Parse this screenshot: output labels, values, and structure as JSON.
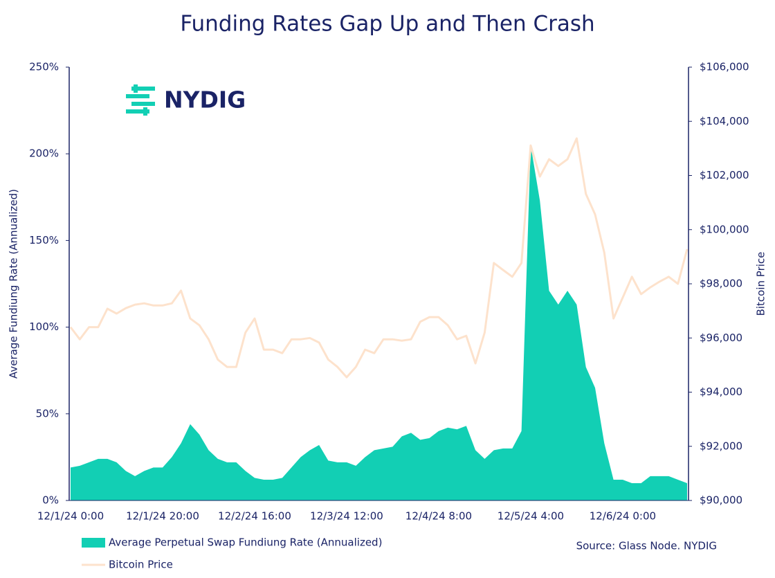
{
  "chart_data": {
    "type": "line",
    "title": "Funding Rates Gap Up and Then Crash",
    "y_label": "Average Fundiung Rate (Annualized)",
    "y2_label": "Bitcoin Price",
    "logo": "NYDIG",
    "source": "Source: Glass Node. NYDIG",
    "categories": [
      "12/1/24 0:00",
      null,
      null,
      null,
      null,
      null,
      null,
      null,
      null,
      null,
      "12/1/24 20:00",
      null,
      null,
      null,
      null,
      null,
      null,
      null,
      null,
      null,
      "12/2/24 16:00",
      null,
      null,
      null,
      null,
      null,
      null,
      null,
      null,
      null,
      "12/3/24 12:00",
      null,
      null,
      null,
      null,
      null,
      null,
      null,
      null,
      null,
      "12/4/24 8:00",
      null,
      null,
      null,
      null,
      null,
      null,
      null,
      null,
      null,
      "12/5/24 4:00",
      null,
      null,
      null,
      null,
      null,
      null,
      null,
      null,
      null,
      "12/6/24 0:00",
      null,
      null,
      null,
      null,
      null,
      null,
      null
    ],
    "series": [
      {
        "name": "Average Perpetual Swap Fundiung Rate (Annualized)",
        "type": "area",
        "color": "#12cfb4",
        "values": [
          19,
          20,
          22,
          24,
          24,
          22,
          17,
          14,
          17,
          19,
          19,
          25,
          33,
          44,
          38,
          29,
          24,
          22,
          22,
          17,
          13,
          12,
          12,
          13,
          19,
          25,
          29,
          32,
          23,
          22,
          22,
          20,
          25,
          29,
          30,
          31,
          37,
          39,
          35,
          36,
          40,
          42,
          41,
          43,
          29,
          24,
          29,
          30,
          30,
          40,
          205,
          173,
          121,
          113,
          121,
          113,
          77,
          65,
          33,
          12,
          12,
          10,
          10,
          14,
          14,
          14,
          12,
          10
        ]
      },
      {
        "name": "Bitcoin Price",
        "type": "line",
        "axis": "y2",
        "color": "#fde2cc",
        "values": [
          96400,
          95950,
          96400,
          96400,
          97080,
          96900,
          97100,
          97230,
          97280,
          97200,
          97200,
          97280,
          97750,
          96720,
          96470,
          95950,
          95200,
          94930,
          94930,
          96200,
          96720,
          95570,
          95570,
          95440,
          95950,
          95950,
          96000,
          95830,
          95200,
          94930,
          94550,
          94930,
          95570,
          95440,
          95950,
          95950,
          95900,
          95950,
          96600,
          96770,
          96770,
          96470,
          95950,
          96080,
          95060,
          96200,
          98770,
          98510,
          98260,
          98770,
          103110,
          101960,
          102600,
          102350,
          102600,
          103370,
          101320,
          100560,
          99150,
          96720,
          97490,
          98260,
          97620,
          97870,
          98080,
          98260,
          98000,
          99280
        ]
      }
    ],
    "ylim": [
      0,
      250
    ],
    "yticks": [
      {
        "value": 0,
        "label": "0%"
      },
      {
        "value": 50,
        "label": "50%"
      },
      {
        "value": 100,
        "label": "100%"
      },
      {
        "value": 150,
        "label": "150%"
      },
      {
        "value": 200,
        "label": "200%"
      },
      {
        "value": 250,
        "label": "250%"
      }
    ],
    "y2lim": [
      90000,
      106000
    ],
    "y2ticks": [
      {
        "value": 90000,
        "label": "$90,000"
      },
      {
        "value": 92000,
        "label": "$92,000"
      },
      {
        "value": 94000,
        "label": "$94,000"
      },
      {
        "value": 96000,
        "label": "$96,000"
      },
      {
        "value": 98000,
        "label": "$98,000"
      },
      {
        "value": 100000,
        "label": "$100,000"
      },
      {
        "value": 102000,
        "label": "$102,000"
      },
      {
        "value": 104000,
        "label": "$104,000"
      },
      {
        "value": 106000,
        "label": "$106,000"
      }
    ],
    "grid": false,
    "legend": "bottom-left"
  }
}
